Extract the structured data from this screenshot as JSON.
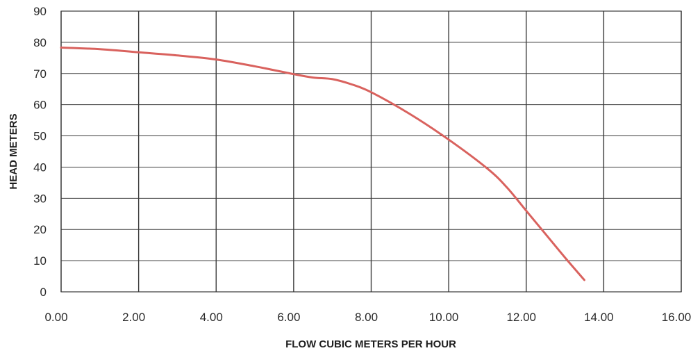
{
  "colors": {
    "series": "#d9625e",
    "grid": "#3a3a3a",
    "background": "#ffffff"
  },
  "chart_data": {
    "type": "line",
    "title": "",
    "xlabel": "FLOW CUBIC METERS PER HOUR",
    "ylabel": "HEAD METERS",
    "xlim": [
      0,
      16
    ],
    "ylim": [
      0,
      90
    ],
    "grid": true,
    "x_ticks": [
      "0.00",
      "2.00",
      "4.00",
      "6.00",
      "8.00",
      "10.00",
      "12.00",
      "14.00",
      "16.00"
    ],
    "y_ticks": [
      "0",
      "10",
      "20",
      "30",
      "40",
      "50",
      "60",
      "70",
      "80",
      "90"
    ],
    "series": [
      {
        "x": [
          0,
          1,
          2,
          3,
          4,
          5,
          6,
          6.5,
          7,
          7.5,
          8,
          9,
          10,
          11,
          11.5,
          12,
          12.5,
          13,
          13.5
        ],
        "y": [
          78.3,
          77.8,
          76.8,
          75.8,
          74.5,
          72.3,
          69.8,
          68.7,
          68.2,
          66.5,
          64,
          57,
          48.8,
          39.5,
          33.5,
          26,
          18.5,
          11,
          3.8
        ]
      }
    ]
  }
}
